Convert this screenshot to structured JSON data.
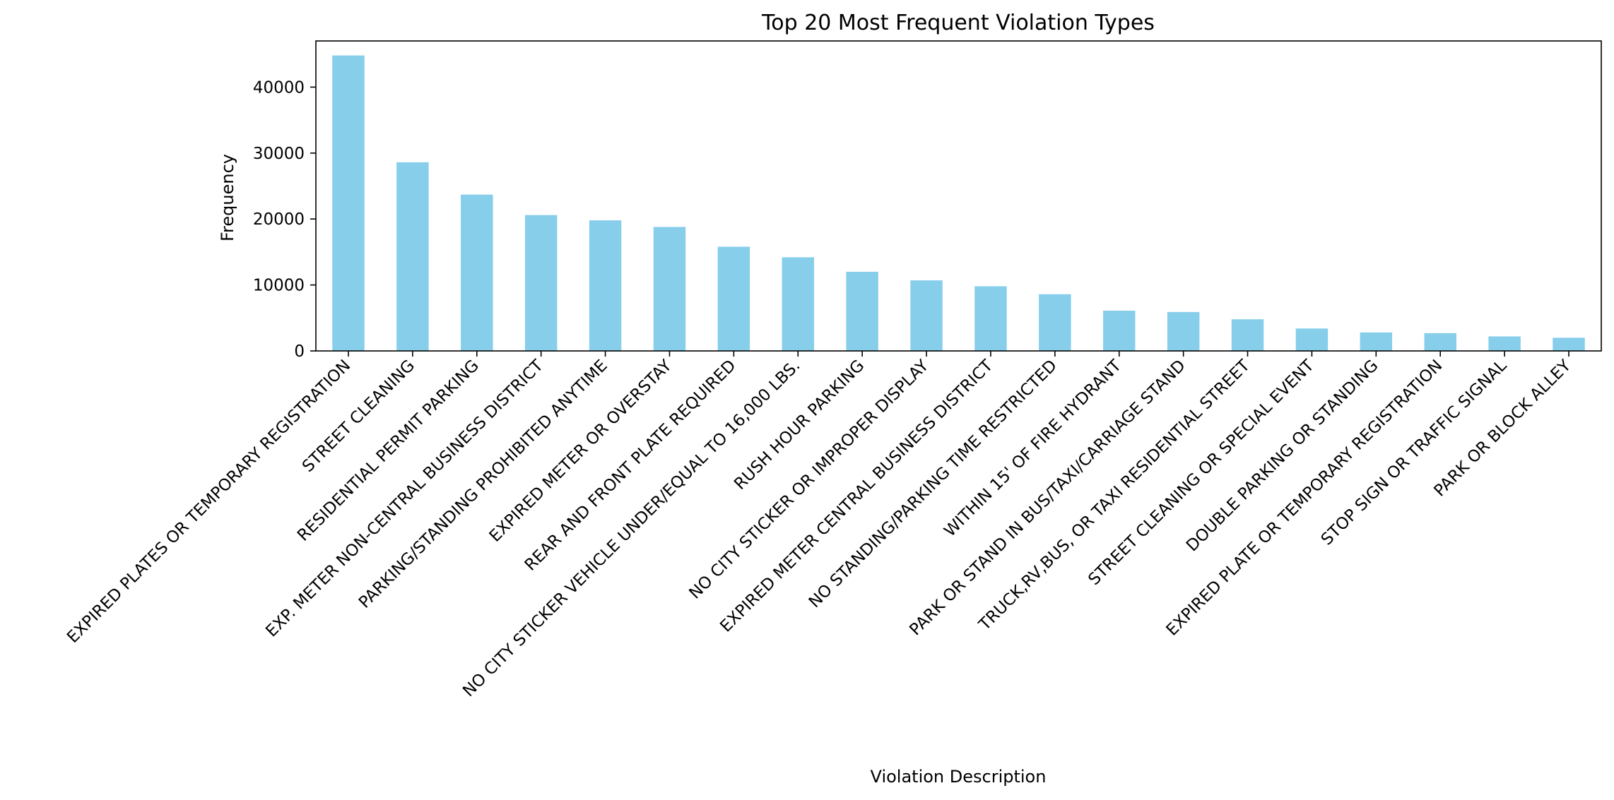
{
  "chart_data": {
    "type": "bar",
    "title": "Top 20 Most Frequent Violation Types",
    "xlabel": "Violation Description",
    "ylabel": "Frequency",
    "ylim": [
      0,
      47000
    ],
    "yticks": [
      0,
      10000,
      20000,
      30000,
      40000
    ],
    "grid": false,
    "legend": "none",
    "bar_color": "#87CEEB",
    "categories": [
      "EXPIRED PLATES OR TEMPORARY REGISTRATION",
      "STREET CLEANING",
      "RESIDENTIAL PERMIT PARKING",
      "EXP. METER NON-CENTRAL BUSINESS DISTRICT",
      "PARKING/STANDING PROHIBITED ANYTIME",
      "EXPIRED METER OR OVERSTAY",
      "REAR AND FRONT PLATE REQUIRED",
      "NO CITY STICKER VEHICLE UNDER/EQUAL TO 16,000 LBS.",
      "RUSH HOUR PARKING",
      "NO CITY STICKER OR IMPROPER DISPLAY",
      "EXPIRED METER CENTRAL BUSINESS DISTRICT",
      "NO STANDING/PARKING TIME RESTRICTED",
      "WITHIN 15' OF FIRE HYDRANT",
      "PARK OR STAND IN BUS/TAXI/CARRIAGE STAND",
      "TRUCK,RV,BUS, OR TAXI RESIDENTIAL STREET",
      "STREET CLEANING OR SPECIAL EVENT",
      "DOUBLE PARKING OR STANDING",
      "EXPIRED PLATE OR TEMPORARY REGISTRATION",
      "STOP SIGN OR TRAFFIC SIGNAL",
      "PARK OR BLOCK ALLEY"
    ],
    "values": [
      44800,
      28600,
      23700,
      20600,
      19800,
      18800,
      15800,
      14200,
      12000,
      10700,
      9800,
      8600,
      6100,
      5900,
      4800,
      3400,
      2800,
      2700,
      2200,
      2000
    ]
  }
}
